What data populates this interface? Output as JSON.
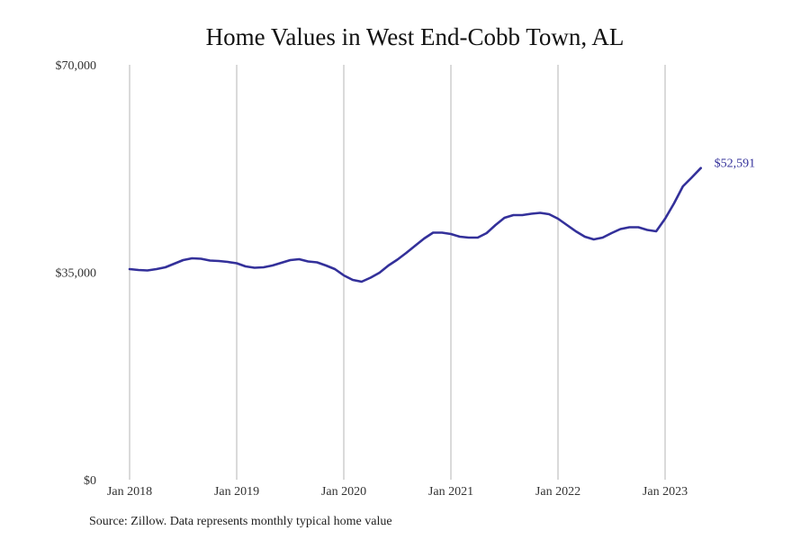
{
  "chart_data": {
    "type": "line",
    "title": "Home Values in West End-Cobb Town, AL",
    "source": "Source: Zillow. Data represents monthly typical home value",
    "xlabel": "",
    "ylabel": "",
    "ylim": [
      0,
      70000
    ],
    "yticks": [
      0,
      35000,
      70000
    ],
    "ytick_labels": [
      "$0",
      "$35,000",
      "$70,000"
    ],
    "xtick_labels": [
      "Jan 2018",
      "Jan 2019",
      "Jan 2020",
      "Jan 2021",
      "Jan 2022",
      "Jan 2023"
    ],
    "grid": "vertical",
    "x_start": "Jan 2018",
    "x_frequency": "monthly",
    "series": [
      {
        "name": "Typical home value",
        "color": "#33309a",
        "end_label": "$52,591",
        "values": [
          35530,
          35380,
          35310,
          35530,
          35840,
          36440,
          37050,
          37360,
          37280,
          36980,
          36900,
          36750,
          36520,
          35990,
          35760,
          35840,
          36140,
          36600,
          37050,
          37200,
          36820,
          36670,
          36140,
          35530,
          34470,
          33710,
          33410,
          34090,
          34930,
          36140,
          37130,
          38270,
          39480,
          40700,
          41680,
          41680,
          41460,
          41000,
          40850,
          40850,
          41610,
          42970,
          44190,
          44640,
          44640,
          44870,
          45020,
          44800,
          44040,
          42970,
          41910,
          41000,
          40540,
          40850,
          41610,
          42290,
          42590,
          42590,
          42140,
          41910,
          44040,
          46620,
          49500,
          51020,
          52591
        ]
      }
    ]
  }
}
